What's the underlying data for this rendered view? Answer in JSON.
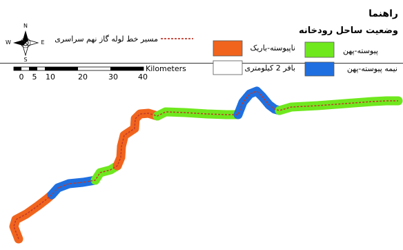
{
  "legend": {
    "title": "راهنما",
    "subtitle": "وضعیت ساحل رودخانه",
    "pipeline_label": "مسیر خط لوله گاز نهم سراسری",
    "buffer_label": "بافر 2 کیلومتری",
    "classes": [
      {
        "label": "ناپیوسته-باریک",
        "color": "#f0641e"
      },
      {
        "label": "پیوسته-پهن",
        "color": "#6fe81e"
      },
      {
        "label": "نیمه پیوسته-پهن",
        "color": "#1f6fe0"
      }
    ],
    "pipeline_color": "#c0392b"
  },
  "compass": {
    "n": "N",
    "s": "S",
    "e": "E",
    "w": "W"
  },
  "scale_bar": {
    "unit": "Kilometers",
    "ticks": [
      "0",
      "5",
      "10",
      "20",
      "30",
      "40"
    ]
  }
}
